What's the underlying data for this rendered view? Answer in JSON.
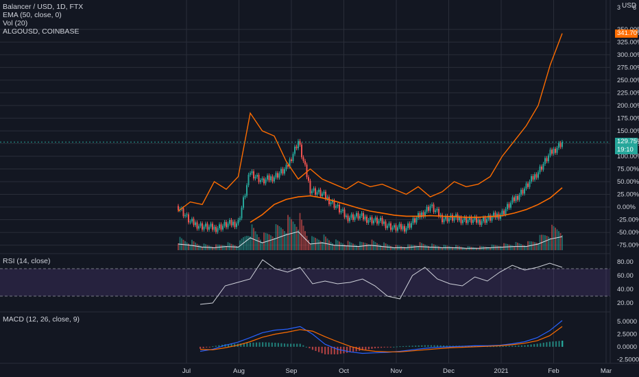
{
  "header": {
    "symbol": "Balancer / USD, 1D, FTX",
    "ema": "EMA (50, close, 0)",
    "vol": "Vol (20)",
    "compare": "ALGOUSD, COINBASE",
    "currency": "USD",
    "axis_top_left": "3",
    "axis_top_right": "6"
  },
  "tags": {
    "algo": "341.70%",
    "price": "129.75%",
    "countdown": "19:10"
  },
  "colors": {
    "background": "#131722",
    "grid": "#2a2e39",
    "up": "#26a69a",
    "down": "#ef5350",
    "compare": "#ff6d00",
    "ema": "#ff6d00",
    "volume_ma": "#e0e3eb",
    "rsi_line": "#d1d4dc",
    "rsi_band": "#7e57c2",
    "macd_line": "#2962ff",
    "signal_line": "#ff6d00"
  },
  "x_axis_labels": [
    "Jul",
    "Aug",
    "Sep",
    "Oct",
    "Nov",
    "Dec",
    "2021",
    "Feb",
    "Mar"
  ],
  "chart_data": [
    {
      "type": "line",
      "title": "Balancer / USD, 1D, FTX",
      "y_scale": "percent",
      "ylim": [
        -85,
        370
      ],
      "y_ticks": [
        "350.00%",
        "325.00%",
        "300.00%",
        "275.00%",
        "250.00%",
        "225.00%",
        "200.00%",
        "175.00%",
        "150.00%",
        "125.00%",
        "100.00%",
        "75.00%",
        "50.00%",
        "25.00%",
        "0.00%",
        "-25.00%",
        "-50.00%",
        "-75.00%"
      ],
      "x": [
        "Jun 28",
        "Jul 5",
        "Jul 12",
        "Jul 19",
        "Jul 26",
        "Aug 2",
        "Aug 9",
        "Aug 16",
        "Aug 23",
        "Aug 30",
        "Sep 6",
        "Sep 13",
        "Sep 20",
        "Sep 27",
        "Oct 4",
        "Oct 11",
        "Oct 18",
        "Oct 25",
        "Nov 1",
        "Nov 8",
        "Nov 15",
        "Nov 22",
        "Nov 29",
        "Dec 6",
        "Dec 13",
        "Dec 20",
        "Dec 27",
        "Jan 3",
        "Jan 10",
        "Jan 17",
        "Jan 24",
        "Jan 31",
        "Feb 7"
      ],
      "series": [
        {
          "name": "Balancer / USD",
          "values": [
            2,
            -30,
            -38,
            -42,
            -35,
            -30,
            70,
            50,
            60,
            75,
            130,
            35,
            25,
            5,
            -20,
            -18,
            -25,
            -30,
            -42,
            -40,
            -20,
            2,
            -22,
            -22,
            -25,
            -28,
            -22,
            -12,
            15,
            40,
            70,
            105,
            128
          ]
        },
        {
          "name": "ALGOUSD, COINBASE",
          "values": [
            -8,
            10,
            5,
            50,
            35,
            60,
            185,
            150,
            140,
            90,
            55,
            75,
            55,
            45,
            35,
            50,
            40,
            45,
            35,
            25,
            40,
            20,
            30,
            50,
            40,
            45,
            60,
            100,
            130,
            160,
            200,
            280,
            342
          ]
        },
        {
          "name": "EMA (50, close, 0)",
          "values": [
            null,
            null,
            null,
            null,
            null,
            null,
            -30,
            -15,
            5,
            15,
            20,
            22,
            18,
            12,
            5,
            -2,
            -8,
            -12,
            -16,
            -18,
            -18,
            -17,
            -18,
            -19,
            -20,
            -20,
            -19,
            -17,
            -12,
            -5,
            5,
            18,
            38
          ]
        },
        {
          "name": "Vol (20)",
          "values": [
            10,
            8,
            5,
            4,
            6,
            5,
            20,
            12,
            18,
            25,
            30,
            10,
            12,
            8,
            7,
            6,
            8,
            6,
            4,
            4,
            6,
            5,
            4,
            4,
            3,
            3,
            4,
            5,
            6,
            6,
            10,
            18,
            22
          ]
        }
      ]
    },
    {
      "type": "line",
      "title": "RSI (14, close)",
      "ylim": [
        10,
        90
      ],
      "y_ticks": [
        "80.00",
        "60.00",
        "40.00",
        "20.00"
      ],
      "bands": [
        30,
        70
      ],
      "x": [
        "Jul 19",
        "Jul 26",
        "Aug 2",
        "Aug 9",
        "Aug 16",
        "Aug 23",
        "Aug 30",
        "Sep 6",
        "Sep 13",
        "Sep 20",
        "Sep 27",
        "Oct 4",
        "Oct 11",
        "Oct 18",
        "Oct 25",
        "Nov 1",
        "Nov 8",
        "Nov 15",
        "Nov 22",
        "Nov 29",
        "Dec 6",
        "Dec 13",
        "Dec 20",
        "Dec 27",
        "Jan 3",
        "Jan 10",
        "Jan 17",
        "Jan 24",
        "Jan 31",
        "Feb 7"
      ],
      "series": [
        {
          "name": "RSI",
          "values": [
            18,
            20,
            45,
            50,
            55,
            83,
            70,
            65,
            72,
            48,
            52,
            48,
            50,
            55,
            45,
            30,
            26,
            60,
            72,
            55,
            48,
            45,
            58,
            52,
            65,
            75,
            68,
            72,
            78,
            72
          ]
        }
      ]
    },
    {
      "type": "bar",
      "title": "MACD (12, 26, close, 9)",
      "ylim": [
        -3,
        6.5
      ],
      "y_ticks": [
        "5.0000",
        "2.5000",
        "0.0000",
        "-2.5000"
      ],
      "x": [
        "Jul 19",
        "Jul 26",
        "Aug 2",
        "Aug 9",
        "Aug 16",
        "Aug 23",
        "Aug 30",
        "Sep 6",
        "Sep 13",
        "Sep 20",
        "Sep 27",
        "Oct 4",
        "Oct 11",
        "Oct 18",
        "Oct 25",
        "Nov 1",
        "Nov 8",
        "Nov 15",
        "Nov 22",
        "Nov 29",
        "Dec 6",
        "Dec 13",
        "Dec 20",
        "Dec 27",
        "Jan 3",
        "Jan 10",
        "Jan 17",
        "Jan 24",
        "Jan 31",
        "Feb 7"
      ],
      "series": [
        {
          "name": "MACD",
          "values": [
            -0.9,
            -0.5,
            0.3,
            0.9,
            1.8,
            2.8,
            3.3,
            3.5,
            4.0,
            2.5,
            0.5,
            -0.5,
            -1.0,
            -1.3,
            -1.2,
            -1.1,
            -0.9,
            -0.6,
            -0.3,
            -0.1,
            0.0,
            0.1,
            0.2,
            0.2,
            0.3,
            0.6,
            1.0,
            1.8,
            3.2,
            5.2
          ]
        },
        {
          "name": "Signal",
          "values": [
            -0.5,
            -0.6,
            -0.2,
            0.3,
            1.0,
            1.9,
            2.5,
            2.9,
            3.4,
            3.1,
            2.0,
            1.0,
            0.1,
            -0.6,
            -0.9,
            -1.0,
            -1.0,
            -0.8,
            -0.6,
            -0.4,
            -0.2,
            -0.1,
            0.0,
            0.1,
            0.2,
            0.4,
            0.7,
            1.2,
            2.2,
            4.0
          ]
        },
        {
          "name": "Histogram",
          "values": [
            -0.4,
            0.1,
            0.5,
            0.6,
            0.8,
            0.9,
            0.8,
            0.6,
            0.6,
            -0.6,
            -1.5,
            -1.5,
            -1.1,
            -0.7,
            -0.3,
            -0.1,
            0.1,
            0.2,
            0.3,
            0.3,
            0.2,
            0.2,
            0.2,
            0.1,
            0.1,
            0.2,
            0.3,
            0.6,
            1.0,
            1.2
          ]
        }
      ]
    }
  ]
}
